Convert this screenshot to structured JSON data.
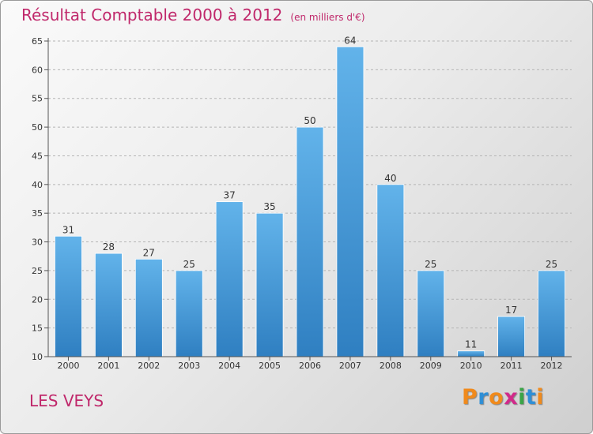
{
  "title": "Résultat Comptable 2000 à 2012",
  "subtitle": "(en milliers d'€)",
  "place": "LES VEYS",
  "logo": {
    "letters": [
      "P",
      "r",
      "o",
      "x",
      "i",
      "t",
      "i"
    ],
    "colors": [
      "#f08a1c",
      "#2f8fd6",
      "#f08a1c",
      "#d12a8a",
      "#3aa447",
      "#2f8fd6",
      "#f08a1c"
    ]
  },
  "colors": {
    "bar_light": "#62b3ea",
    "bar_dark": "#2f7fc1",
    "title": "#c0286b"
  },
  "chart_data": {
    "type": "bar",
    "title": "Résultat Comptable 2000 à 2012",
    "subtitle": "(en milliers d'€)",
    "categories": [
      "2000",
      "2001",
      "2002",
      "2003",
      "2004",
      "2005",
      "2006",
      "2007",
      "2008",
      "2009",
      "2010",
      "2011",
      "2012"
    ],
    "values": [
      31,
      28,
      27,
      25,
      37,
      35,
      50,
      64,
      40,
      25,
      11,
      17,
      25
    ],
    "ylim": [
      10,
      65
    ],
    "yticks": [
      10,
      15,
      20,
      25,
      30,
      35,
      40,
      45,
      50,
      55,
      60,
      65
    ],
    "xlabel": "",
    "ylabel": "",
    "grid": true
  }
}
